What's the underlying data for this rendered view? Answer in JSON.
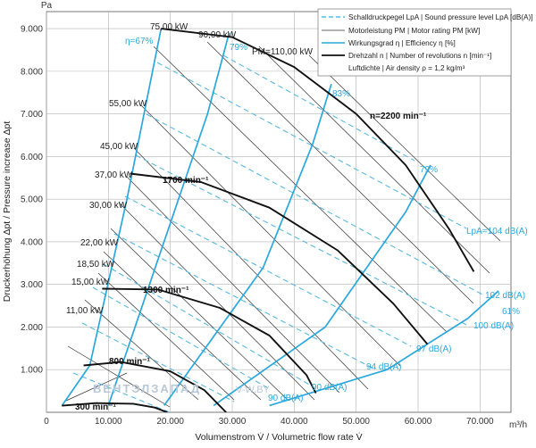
{
  "chart_data": {
    "type": "line",
    "xlabel": "Volumenstrom V̇ / Volumetric flow rate V̇",
    "x_unit": "m³/h",
    "ylabel": "Druckerhöhung Δpt / Pressure increase Δpt",
    "y_unit": "Pa",
    "xlim": [
      0,
      75000
    ],
    "ylim": [
      0,
      9400
    ],
    "x_ticks": [
      "0",
      "10.000",
      "20.000",
      "30.000",
      "40.000",
      "50.000",
      "60.000",
      "70.000"
    ],
    "y_ticks": [
      "1.000",
      "2.000",
      "3.000",
      "4.000",
      "5.000",
      "6.000",
      "7.000",
      "8.000",
      "9.000"
    ],
    "grid": true,
    "legend_position": "top-right",
    "legend": [
      "Schalldruckpegel LpA | Sound pressure level LpA [dB(A)]",
      "Motorleistung PM | Motor rating PM [kW]",
      "Wirkungsgrad η | Efficiency η [%]",
      "Drehzahl n | Number of revolutions n [min⁻¹]",
      "Luftdichte | Air density ρ = 1,2 kg/m³"
    ],
    "rpm_curves": [
      {
        "name": "300 min⁻¹",
        "x": [
          2500,
          8000,
          14000,
          17500,
          19500
        ],
        "y": [
          155,
          215,
          200,
          110,
          0
        ]
      },
      {
        "name": "800 min⁻¹",
        "x": [
          6000,
          12000,
          20000,
          25500,
          29000
        ],
        "y": [
          1100,
          1180,
          960,
          520,
          0
        ]
      },
      {
        "name": "1300 min⁻¹",
        "x": [
          9000,
          18000,
          28000,
          36000,
          42000,
          43500
        ],
        "y": [
          2900,
          2880,
          2450,
          1800,
          870,
          450
        ]
      },
      {
        "name": "1700 min⁻¹",
        "x": [
          13500,
          25000,
          36000,
          47000,
          56000,
          61500
        ],
        "y": [
          5600,
          5400,
          4800,
          3800,
          2550,
          1600
        ]
      },
      {
        "name": "n=2200 min⁻¹",
        "x": [
          18500,
          30000,
          40000,
          50000,
          58000,
          65000,
          69000
        ],
        "y": [
          9000,
          8800,
          8100,
          7000,
          5800,
          4300,
          3300
        ]
      }
    ],
    "efficiency_lines": [
      {
        "label": "η=67%",
        "x": [
          2500,
          7000,
          13000,
          18500
        ],
        "y": [
          155,
          1100,
          5000,
          9000
        ]
      },
      {
        "label": "79%",
        "x": [
          10000,
          26000,
          29500
        ],
        "y": [
          160,
          7000,
          8900
        ]
      },
      {
        "label": "83%",
        "x": [
          19000,
          35000,
          43000,
          46000
        ],
        "y": [
          160,
          3400,
          6300,
          7700
        ]
      },
      {
        "label": "79%",
        "x": [
          27000,
          45000,
          58000,
          62000
        ],
        "y": [
          160,
          2000,
          4700,
          5800
        ]
      },
      {
        "label": "61%",
        "x": [
          36000,
          55000,
          68000,
          73000
        ],
        "y": [
          160,
          1000,
          2200,
          2850
        ]
      }
    ],
    "motor_rating_labels": [
      "75,00 kW",
      "90,00 kW",
      "PM=110,00 kW",
      "55,00 kW",
      "45,00 kW",
      "37,00 kW",
      "30,00 kW",
      "22,00 kW",
      "18,50 kW",
      "15,00 kW",
      "11,00 kW"
    ],
    "sound_level_labels": [
      "LpA=104 dB(A)",
      "102 dB(A)",
      "100 dB(A)",
      "97 dB(A)",
      "94 dB(A)",
      "90 dB(A)",
      "90 dB(A)"
    ]
  },
  "watermark": {
    "brand": "ВЕНТЭЛЗАПАД",
    "site": "V-W.BY"
  }
}
